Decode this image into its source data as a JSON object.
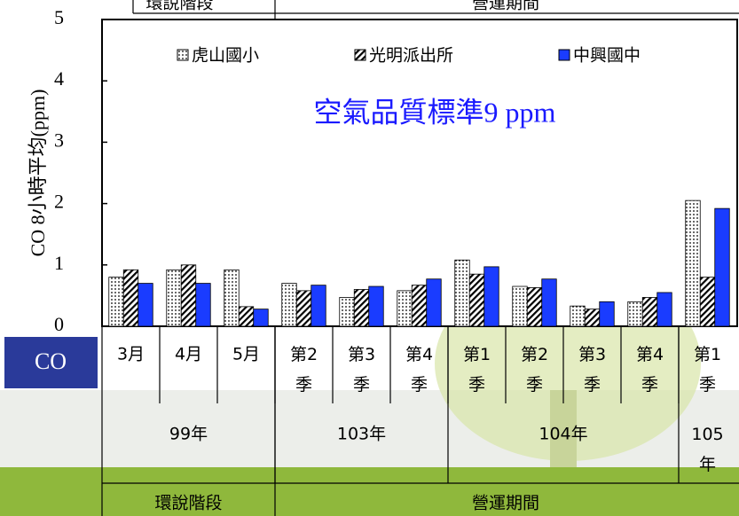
{
  "chart_data": {
    "type": "bar",
    "y_label": "CO 8小時平均(ppm)",
    "annotation": "空氣品質標準9 ppm",
    "row_label": "CO",
    "categories": [
      "3月",
      "4月",
      "5月",
      "第2季",
      "第3季",
      "第4季",
      "第1季",
      "第2季",
      "第3季",
      "第4季",
      "第1季"
    ],
    "years": [
      "99年",
      "99年",
      "99年",
      "103年",
      "103年",
      "103年",
      "104年",
      "104年",
      "104年",
      "104年",
      "105年"
    ],
    "phases": [
      "環說階段",
      "環說階段",
      "環說階段",
      "營運期間",
      "營運期間",
      "營運期間",
      "營運期間",
      "營運期間",
      "營運期間",
      "營運期間",
      "營運期間"
    ],
    "series": [
      {
        "name": "虎山國小",
        "color": "#000000",
        "pattern": "dots",
        "values": [
          0.8,
          0.92,
          0.92,
          0.7,
          0.47,
          0.58,
          1.08,
          0.65,
          0.33,
          0.4,
          2.05
        ]
      },
      {
        "name": "光明派出所",
        "color": "#000000",
        "pattern": "hatch",
        "values": [
          0.92,
          1.0,
          0.32,
          0.58,
          0.6,
          0.67,
          0.85,
          0.63,
          0.28,
          0.47,
          0.8
        ]
      },
      {
        "name": "中興國中",
        "color": "#1a3cff",
        "pattern": "solid",
        "values": [
          0.7,
          0.7,
          0.28,
          0.67,
          0.65,
          0.77,
          0.97,
          0.77,
          0.4,
          0.55,
          1.92
        ]
      }
    ],
    "ylim": [
      0,
      5
    ],
    "yticks": [
      0,
      1,
      2,
      3,
      4,
      5
    ],
    "legend": "top"
  }
}
